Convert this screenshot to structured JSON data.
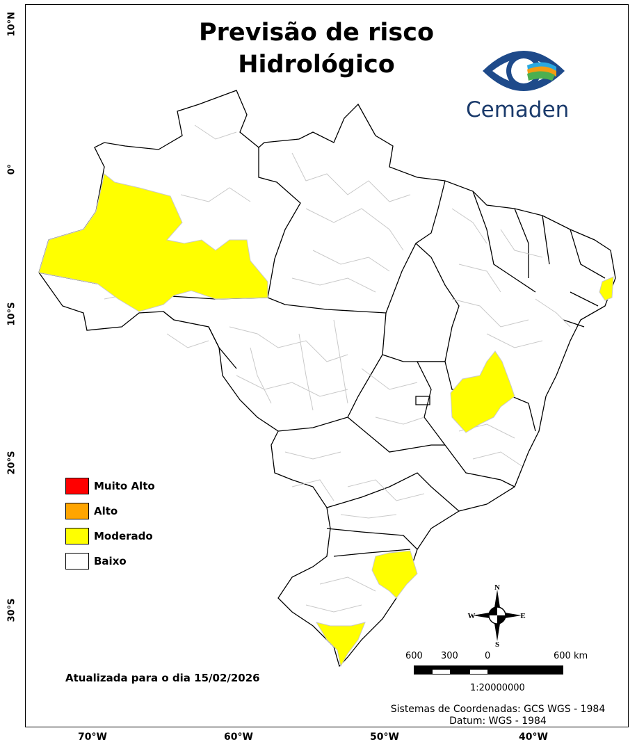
{
  "title": [
    "Previsão de risco",
    "Hidrológico"
  ],
  "logo": {
    "text": "Cemaden"
  },
  "axes": {
    "lat": [
      "10°N",
      "0°",
      "10°S",
      "20°S",
      "30°S"
    ],
    "lon": [
      "70°W",
      "60°W",
      "50°W",
      "40°W"
    ]
  },
  "legend": [
    {
      "label": "Muito Alto",
      "color": "#ff0000"
    },
    {
      "label": "Alto",
      "color": "#ffa500"
    },
    {
      "label": "Moderado",
      "color": "#ffff00"
    },
    {
      "label": "Baixo",
      "color": "#ffffff"
    }
  ],
  "updated": "Atualizada para o dia 15/02/2026",
  "scale": {
    "labels": [
      "600",
      "300",
      "0",
      "600 km"
    ],
    "ratio": "1:20000000"
  },
  "compass": {
    "n": "N",
    "s": "S",
    "e": "E",
    "w": "W"
  },
  "coord_system": [
    "Sistemas de Coordenadas: GCS WGS - 1984",
    "Datum: WGS - 1984"
  ]
}
